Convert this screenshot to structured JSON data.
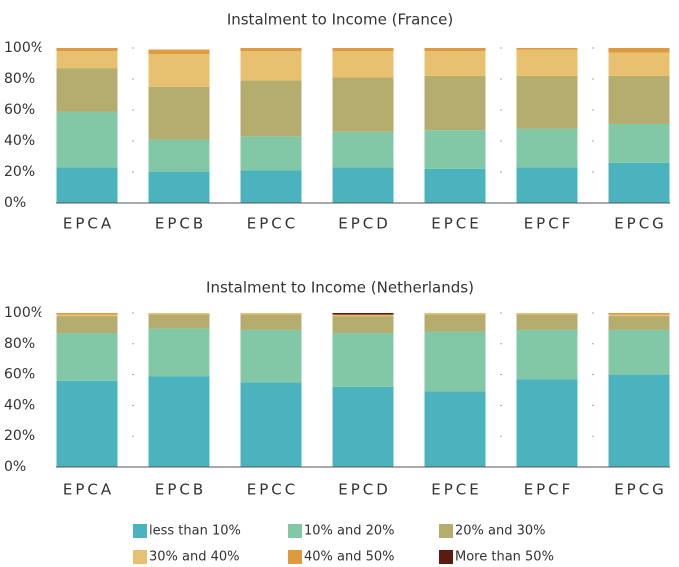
{
  "chart_data": [
    {
      "type": "bar",
      "stacked": true,
      "title": "Instalment to Income (France)",
      "categories": [
        "EPCA",
        "EPCB",
        "EPCC",
        "EPCD",
        "EPCE",
        "EPCF",
        "EPCG"
      ],
      "series": [
        {
          "name": "less than 10%",
          "color": "#4ab3bd",
          "values": [
            23,
            20,
            21,
            23,
            22,
            23,
            26
          ]
        },
        {
          "name": "10% and 20%",
          "color": "#82c8a6",
          "values": [
            36,
            21,
            22,
            23,
            25,
            25,
            25
          ]
        },
        {
          "name": "20% and 30%",
          "color": "#b5ad6e",
          "values": [
            28,
            34,
            36,
            35,
            35,
            34,
            31
          ]
        },
        {
          "name": "30% and 40%",
          "color": "#e8c170",
          "values": [
            11,
            21,
            19,
            17,
            16,
            17,
            15
          ]
        },
        {
          "name": "40% and 50%",
          "color": "#dd9a3e",
          "values": [
            2,
            3,
            2,
            2,
            2,
            1,
            3
          ]
        },
        {
          "name": "More than 50%",
          "color": "#5c1a10",
          "values": [
            0,
            0,
            0,
            0,
            0,
            0,
            0
          ]
        }
      ],
      "ylim": [
        0,
        100
      ],
      "yticks": [
        {
          "value": 0,
          "label": "0%"
        },
        {
          "value": 20,
          "label": "20%"
        },
        {
          "value": 40,
          "label": "40%"
        },
        {
          "value": 60,
          "label": "60%"
        },
        {
          "value": 80,
          "label": "80%"
        },
        {
          "value": 100,
          "label": "100%"
        }
      ],
      "grid": true
    },
    {
      "type": "bar",
      "stacked": true,
      "title": "Instalment to Income (Netherlands)",
      "categories": [
        "EPCA",
        "EPCB",
        "EPCC",
        "EPCD",
        "EPCE",
        "EPCF",
        "EPCG"
      ],
      "series": [
        {
          "name": "less than 10%",
          "color": "#4ab3bd",
          "values": [
            56,
            59,
            55,
            52,
            49,
            57,
            60
          ]
        },
        {
          "name": "10% and 20%",
          "color": "#82c8a6",
          "values": [
            31,
            31,
            34,
            35,
            39,
            32,
            29
          ]
        },
        {
          "name": "20% and 30%",
          "color": "#b5ad6e",
          "values": [
            11,
            9,
            10,
            11,
            11,
            10,
            9
          ]
        },
        {
          "name": "30% and 40%",
          "color": "#e8c170",
          "values": [
            1,
            1,
            1,
            0.5,
            1,
            1,
            1
          ]
        },
        {
          "name": "40% and 50%",
          "color": "#dd9a3e",
          "values": [
            1,
            0,
            0,
            0.5,
            0,
            0,
            1
          ]
        },
        {
          "name": "More than 50%",
          "color": "#5c1a10",
          "values": [
            0,
            0,
            0,
            1,
            0,
            0,
            0
          ]
        }
      ],
      "ylim": [
        0,
        100
      ],
      "yticks": [
        {
          "value": 0,
          "label": "0%"
        },
        {
          "value": 20,
          "label": "20%"
        },
        {
          "value": 40,
          "label": "40%"
        },
        {
          "value": 60,
          "label": "60%"
        },
        {
          "value": 80,
          "label": "80%"
        },
        {
          "value": 100,
          "label": "100%"
        }
      ],
      "grid": true
    }
  ]
}
